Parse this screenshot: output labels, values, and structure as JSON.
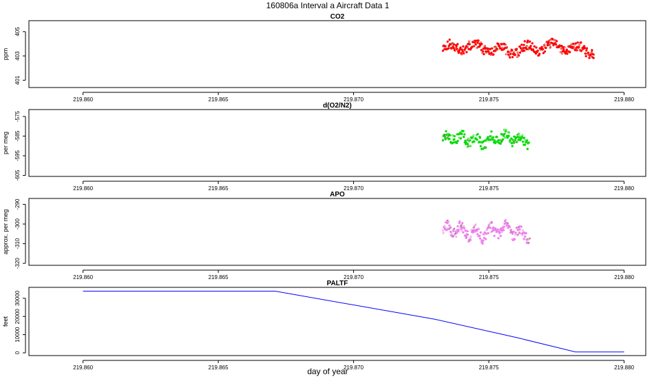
{
  "figure": {
    "title": "160806a   Interval a Aircraft Data 1",
    "xlabel": "day of year"
  },
  "chart_data": [
    {
      "type": "scatter",
      "title": "CO2",
      "ylabel": "ppm",
      "xlim": [
        219.858,
        219.8808
      ],
      "ylim": [
        400.4,
        405.9
      ],
      "xticks": [
        219.86,
        219.865,
        219.87,
        219.875,
        219.88
      ],
      "xtick_labels": [
        "219.860",
        "219.865",
        "219.870",
        "219.875",
        "219.880"
      ],
      "yticks": [
        401,
        403,
        405
      ],
      "ytick_labels": [
        "401",
        "403",
        "405"
      ],
      "color": "#ff0000",
      "x_start": 219.8733,
      "x_end": 219.8789,
      "y_center": 403.6,
      "y_spread": 0.7,
      "n_points": 300,
      "seed": 11
    },
    {
      "type": "scatter",
      "title": "d(O2/N2)",
      "ylabel": "per meg",
      "xlim": [
        219.858,
        219.8808
      ],
      "ylim": [
        -605.5,
        -571.5
      ],
      "xticks": [
        219.86,
        219.865,
        219.87,
        219.875,
        219.88
      ],
      "xtick_labels": [
        "219.860",
        "219.865",
        "219.870",
        "219.875",
        "219.880"
      ],
      "yticks": [
        -575,
        -585,
        -595,
        -605
      ],
      "ytick_labels": [
        "-575",
        "-585",
        "-595",
        "-605"
      ],
      "color": "#00dd00",
      "x_start": 219.8733,
      "x_end": 219.8765,
      "y_center": -586.5,
      "y_spread": 4.5,
      "n_points": 170,
      "seed": 23
    },
    {
      "type": "scatter",
      "title": "APO",
      "ylabel": "approx. per meg",
      "xlim": [
        219.858,
        219.8808
      ],
      "ylim": [
        -321,
        -287
      ],
      "xticks": [
        219.86,
        219.865,
        219.87,
        219.875,
        219.88
      ],
      "xtick_labels": [
        "219.860",
        "219.865",
        "219.870",
        "219.875",
        "219.880"
      ],
      "yticks": [
        -290,
        -300,
        -310,
        -320
      ],
      "ytick_labels": [
        "-290",
        "-300",
        "-310",
        "-320"
      ],
      "color": "#ee82ee",
      "x_start": 219.8733,
      "x_end": 219.8765,
      "y_center": -304,
      "y_spread": 5,
      "n_points": 170,
      "seed": 37
    },
    {
      "type": "line",
      "title": "PALTF",
      "ylabel": "feet",
      "xlim": [
        219.858,
        219.8808
      ],
      "ylim": [
        -1500,
        36000
      ],
      "xticks": [
        219.86,
        219.865,
        219.87,
        219.875,
        219.88
      ],
      "xtick_labels": [
        "219.860",
        "219.865",
        "219.870",
        "219.875",
        "219.880"
      ],
      "yticks": [
        0,
        10000,
        20000,
        30000
      ],
      "ytick_labels": [
        "0",
        "10000",
        "20000",
        "30000"
      ],
      "color": "#0000ff",
      "x": [
        219.86,
        219.8671,
        219.873,
        219.876,
        219.8782,
        219.88
      ],
      "y": [
        33900,
        33900,
        18500,
        8500,
        500,
        500
      ]
    }
  ]
}
